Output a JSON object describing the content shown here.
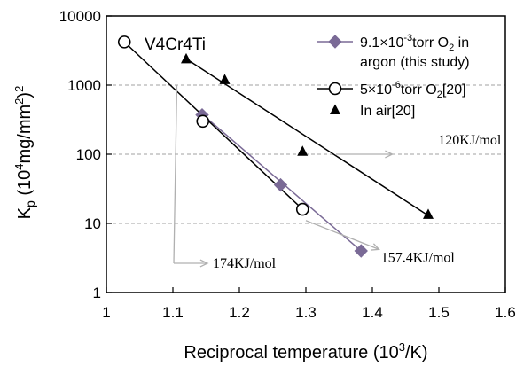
{
  "chart_data": {
    "type": "scatter",
    "xscale": "linear",
    "yscale": "log",
    "xlim": [
      1.0,
      1.6
    ],
    "ylim": [
      1,
      10000
    ],
    "x_ticks": [
      "1",
      "1.1",
      "1.2",
      "1.3",
      "1.4",
      "1.5",
      "1.6"
    ],
    "x_tick_values": [
      1.0,
      1.1,
      1.2,
      1.3,
      1.4,
      1.5,
      1.6
    ],
    "y_ticks": [
      "1",
      "10",
      "100",
      "1000",
      "10000"
    ],
    "y_tick_values": [
      1,
      10,
      100,
      1000,
      10000
    ],
    "grid": "horizontal dashed",
    "legend_position": "top-right",
    "xlabel": {
      "prefix": "Reciprocal temperature (10",
      "sup": "3",
      "suffix": "/K)"
    },
    "ylabel": {
      "prefix": "K",
      "sub": "p",
      "mid": " (10",
      "sup": "4",
      "mid2": "mg/mm",
      "sup2": "2",
      "suffix": ")",
      "sup3": "2"
    },
    "inset_label": "V4Cr4Ti",
    "colors": {
      "purple": "#7a6a96",
      "black": "#000000",
      "grid": "#a0a0a0",
      "arrow": "#b0b0b0"
    },
    "series": [
      {
        "name_parts": [
          "9.1×10",
          "-3",
          "torr O",
          "2",
          " in"
        ],
        "name_line2": "argon (this study)",
        "marker": "diamond",
        "color": "#7a6a96",
        "x": [
          1.144,
          1.262,
          1.383
        ],
        "y": [
          370,
          36,
          4
        ]
      },
      {
        "name_parts": [
          "5×10",
          "-6",
          "torr O",
          "2",
          "[20]"
        ],
        "marker": "circle-open",
        "color": "#000000",
        "x": [
          1.027,
          1.145,
          1.295
        ],
        "y": [
          4200,
          300,
          16
        ]
      },
      {
        "name": "In air[20]",
        "marker": "triangle",
        "color": "#000000",
        "x": [
          1.12,
          1.178,
          1.295,
          1.484
        ],
        "y": [
          2400,
          1200,
          110,
          13.5
        ]
      }
    ],
    "fit_lines": [
      {
        "series": 0,
        "x": [
          1.144,
          1.383
        ],
        "y": [
          380,
          4
        ],
        "color": "#7a6a96"
      },
      {
        "series": 1,
        "x": [
          1.027,
          1.295
        ],
        "y": [
          4200,
          16
        ],
        "color": "#000000"
      },
      {
        "series": 2,
        "x": [
          1.12,
          1.484
        ],
        "y": [
          2400,
          13
        ],
        "color": "#000000"
      }
    ],
    "annotations": [
      {
        "text": "120KJ/mol",
        "text_xy": [
          1.499,
          160
        ],
        "arrow_from": [
          1.43,
          100
        ],
        "arrow_to": [
          1.35,
          100
        ],
        "anchor": "start"
      },
      {
        "text": "157.4KJ/mol",
        "text_xy": [
          1.413,
          3.2
        ],
        "arrow_from": [
          1.41,
          4.2
        ],
        "arrow_to": [
          1.3,
          11
        ],
        "anchor": "middle"
      },
      {
        "text": "174KJ/mol",
        "text_xy": [
          1.16,
          2.65
        ],
        "arrow_from": [
          1.112,
          2.65
        ],
        "arrow_to": [
          1.1,
          2.65
        ],
        "arrow_start": [
          1.106,
          1000
        ],
        "anchor": "start"
      }
    ]
  }
}
